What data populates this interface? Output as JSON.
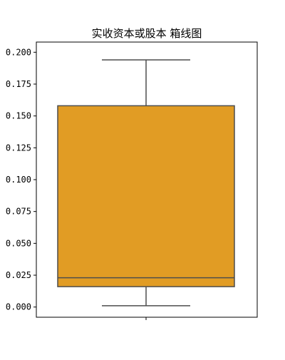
{
  "chart_data": {
    "type": "box",
    "title": "实收资本或股本 箱线图",
    "xlabel": "",
    "ylabel": "",
    "ylim": [
      -0.008,
      0.208
    ],
    "yticks": [
      0.0,
      0.025,
      0.05,
      0.075,
      0.1,
      0.125,
      0.15,
      0.175,
      0.2
    ],
    "ytick_labels": [
      "0.000",
      "0.025",
      "0.050",
      "0.075",
      "0.100",
      "0.125",
      "0.150",
      "0.175",
      "0.200"
    ],
    "box": {
      "whisker_low": 0.001,
      "q1": 0.016,
      "median": 0.023,
      "q3": 0.158,
      "whisker_high": 0.194
    },
    "colors": {
      "box_fill": "#e19c24",
      "line": "#4d4d4d",
      "axis": "#000000"
    },
    "grid": false
  }
}
